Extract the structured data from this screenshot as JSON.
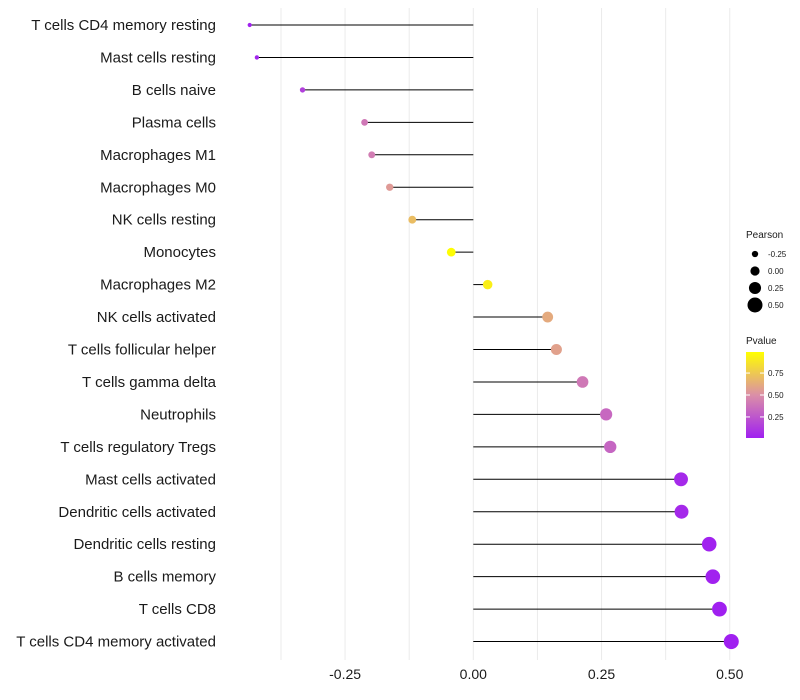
{
  "chart_data": {
    "type": "lollipop",
    "title": "",
    "xlabel": "",
    "ylabel": "",
    "xlim": [
      -0.49,
      0.52
    ],
    "xticks": [
      -0.25,
      0.0,
      0.25,
      0.5
    ],
    "xtick_labels": [
      "-0.25",
      "0.00",
      "0.25",
      "0.50"
    ],
    "grid": true,
    "categories": [
      "T cells CD4 memory resting",
      "Mast cells resting",
      "B cells naive",
      "Plasma cells",
      "Macrophages M1",
      "Macrophages M0",
      "NK cells resting",
      "Monocytes",
      "Macrophages M2",
      "NK cells activated",
      "T cells follicular helper",
      "T cells gamma delta",
      "Neutrophils",
      "T cells regulatory  Tregs ",
      "Mast cells activated",
      "Dendritic cells activated",
      "Dendritic cells resting",
      "B cells memory",
      "T cells CD8",
      "T cells CD4 memory activated"
    ],
    "pearson": [
      -0.436,
      -0.422,
      -0.333,
      -0.212,
      -0.198,
      -0.163,
      -0.119,
      -0.043,
      0.028,
      0.145,
      0.162,
      0.213,
      0.259,
      0.267,
      0.405,
      0.406,
      0.46,
      0.467,
      0.48,
      0.503
    ],
    "pvalue": [
      0.02,
      0.03,
      0.15,
      0.4,
      0.42,
      0.55,
      0.7,
      0.98,
      0.92,
      0.62,
      0.58,
      0.4,
      0.33,
      0.32,
      0.05,
      0.05,
      0.02,
      0.02,
      0.01,
      0.01
    ],
    "legend": {
      "size_title": "Pearson",
      "size_values": [
        -0.25,
        0.0,
        0.25,
        0.5
      ],
      "size_labels": [
        "-0.25",
        "0.00",
        "0.25",
        "0.50"
      ],
      "color_title": "Pvalue",
      "color_values": [
        0.25,
        0.5,
        0.75
      ],
      "color_labels": [
        "0.25",
        "0.50",
        "0.75"
      ],
      "color_low": "#a020f0",
      "color_mid": "#db8fa7",
      "color_high": "#ffff00",
      "position": "right"
    },
    "line_color": "#000000",
    "grid_color": "#ebebeb"
  }
}
